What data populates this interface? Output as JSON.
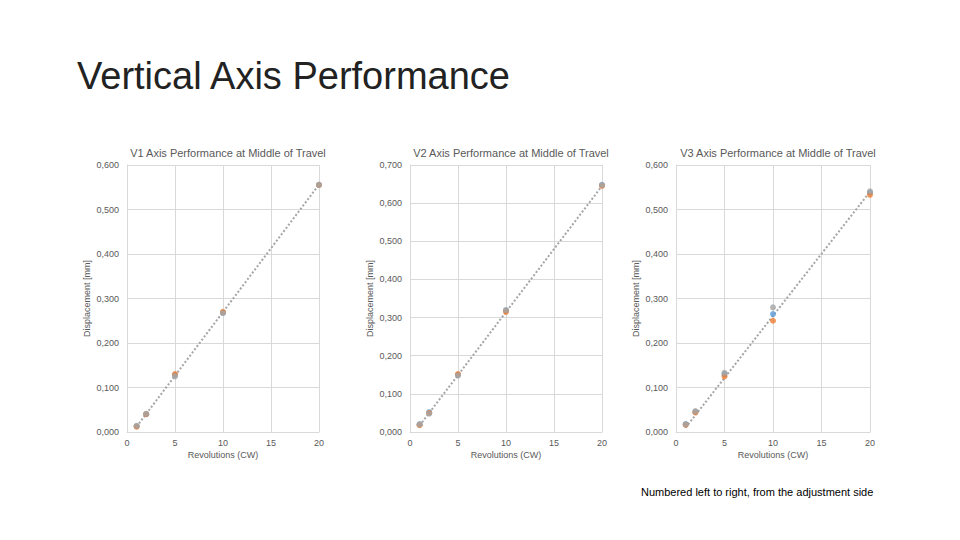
{
  "title": "Vertical Axis Performance",
  "note": "Numbered left to right, from the adjustment side",
  "chart_data": [
    {
      "type": "scatter",
      "title": "V1 Axis Performance at Middle of Travel",
      "x_label": "Revolutions (CW)",
      "y_label": "Displacement [mm]",
      "x": [
        1,
        2,
        5,
        10,
        20
      ],
      "xlim": [
        0,
        20
      ],
      "xticks": [
        0,
        5,
        10,
        15,
        20
      ],
      "ylim": [
        0,
        0.6
      ],
      "yticks": [
        {
          "value": 0,
          "label": "0,000"
        },
        {
          "value": 0.1,
          "label": "0,100"
        },
        {
          "value": 0.2,
          "label": "0,200"
        },
        {
          "value": 0.3,
          "label": "0,300"
        },
        {
          "value": 0.4,
          "label": "0,400"
        },
        {
          "value": 0.5,
          "label": "0,500"
        },
        {
          "value": 0.6,
          "label": "0,600"
        }
      ],
      "grid": true,
      "series": [
        {
          "color": "#5b9bd5",
          "marker": "circle",
          "values": [
            0.013,
            0.04,
            0.128,
            0.268,
            0.555
          ]
        },
        {
          "color": "#ed7d31",
          "marker": "circle",
          "values": [
            0.012,
            0.04,
            0.13,
            0.27,
            0.555
          ]
        },
        {
          "color": "#a5a5a5",
          "marker": "circle",
          "values": [
            0.014,
            0.041,
            0.125,
            0.267,
            0.556
          ]
        },
        {
          "type": "line",
          "color": "#a5a5a5",
          "line_style": "dotted",
          "x": [
            1,
            20
          ],
          "values": [
            0.012,
            0.556
          ]
        }
      ]
    },
    {
      "type": "scatter",
      "title": "V2 Axis Performance at Middle of Travel",
      "x_label": "Revolutions (CW)",
      "y_label": "Displacement [mm]",
      "x": [
        1,
        2,
        5,
        10,
        20
      ],
      "xlim": [
        0,
        20
      ],
      "xticks": [
        0,
        5,
        10,
        15,
        20
      ],
      "ylim": [
        0,
        0.7
      ],
      "yticks": [
        {
          "value": 0,
          "label": "0,000"
        },
        {
          "value": 0.1,
          "label": "0,100"
        },
        {
          "value": 0.2,
          "label": "0,200"
        },
        {
          "value": 0.3,
          "label": "0,300"
        },
        {
          "value": 0.4,
          "label": "0,400"
        },
        {
          "value": 0.5,
          "label": "0,500"
        },
        {
          "value": 0.6,
          "label": "0,600"
        },
        {
          "value": 0.7,
          "label": "0,700"
        }
      ],
      "grid": true,
      "series": [
        {
          "color": "#5b9bd5",
          "marker": "circle",
          "values": [
            0.02,
            0.052,
            0.15,
            0.318,
            0.648
          ]
        },
        {
          "color": "#ed7d31",
          "marker": "circle",
          "values": [
            0.018,
            0.05,
            0.152,
            0.315,
            0.645
          ]
        },
        {
          "color": "#a5a5a5",
          "marker": "circle",
          "values": [
            0.02,
            0.048,
            0.148,
            0.32,
            0.647
          ]
        },
        {
          "type": "line",
          "color": "#a5a5a5",
          "line_style": "dotted",
          "x": [
            1,
            20
          ],
          "values": [
            0.017,
            0.645
          ]
        }
      ]
    },
    {
      "type": "scatter",
      "title": "V3 Axis Performance at Middle of Travel",
      "x_label": "Revolutions (CW)",
      "y_label": "Displacement [mm]",
      "x": [
        1,
        2,
        5,
        10,
        20
      ],
      "xlim": [
        0,
        20
      ],
      "xticks": [
        0,
        5,
        10,
        15,
        20
      ],
      "ylim": [
        0,
        0.6
      ],
      "yticks": [
        {
          "value": 0,
          "label": "0,000"
        },
        {
          "value": 0.1,
          "label": "0,100"
        },
        {
          "value": 0.2,
          "label": "0,200"
        },
        {
          "value": 0.3,
          "label": "0,300"
        },
        {
          "value": 0.4,
          "label": "0,400"
        },
        {
          "value": 0.5,
          "label": "0,500"
        },
        {
          "value": 0.6,
          "label": "0,600"
        }
      ],
      "grid": true,
      "series": [
        {
          "color": "#5b9bd5",
          "marker": "circle",
          "values": [
            0.018,
            0.045,
            0.13,
            0.265,
            0.538
          ]
        },
        {
          "color": "#ed7d31",
          "marker": "circle",
          "values": [
            0.016,
            0.044,
            0.125,
            0.25,
            0.533
          ]
        },
        {
          "color": "#a5a5a5",
          "marker": "circle",
          "values": [
            0.017,
            0.047,
            0.133,
            0.28,
            0.541
          ]
        },
        {
          "type": "line",
          "color": "#a5a5a5",
          "line_style": "dotted",
          "x": [
            1,
            20
          ],
          "values": [
            0.01,
            0.54
          ]
        }
      ]
    }
  ]
}
